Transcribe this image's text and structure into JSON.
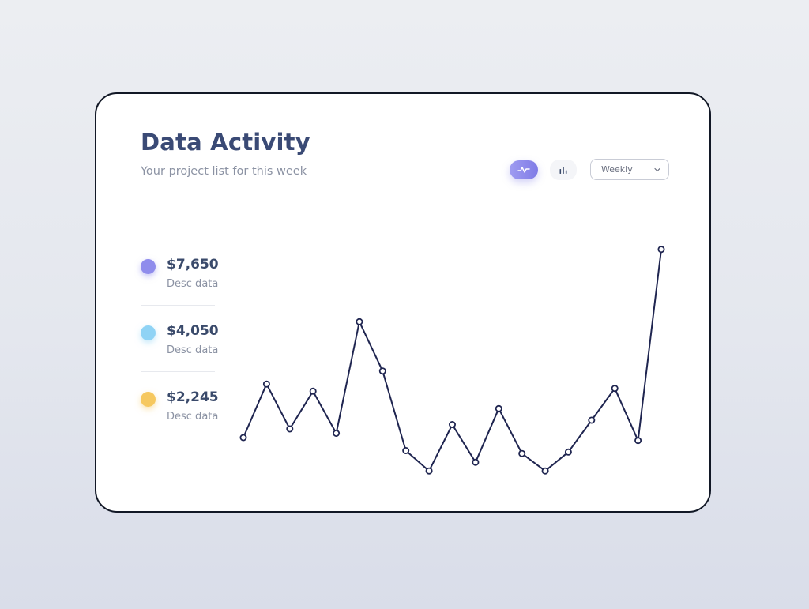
{
  "header": {
    "title": "Data Activity",
    "subtitle": "Your project list for this week"
  },
  "controls": {
    "line_view_icon": "line-chart-icon",
    "bar_view_icon": "bar-chart-icon",
    "period_selected": "Weekly",
    "accent_color": "#8a86ec"
  },
  "stats": [
    {
      "value": "$7,650",
      "desc": "Desc data",
      "color": "#8f8cec"
    },
    {
      "value": "$4,050",
      "desc": "Desc data",
      "color": "#8fd3f5"
    },
    {
      "value": "$2,245",
      "desc": "Desc data",
      "color": "#f6c85f"
    }
  ],
  "chart_data": {
    "type": "line",
    "values": [
      20,
      57,
      26,
      52,
      23,
      100,
      66,
      11,
      -3,
      29,
      3,
      40,
      9,
      -3,
      10,
      32,
      54,
      18,
      150
    ],
    "ylim": [
      -10,
      170
    ],
    "grid": false,
    "legend": "none",
    "line_color": "#1f2550"
  }
}
